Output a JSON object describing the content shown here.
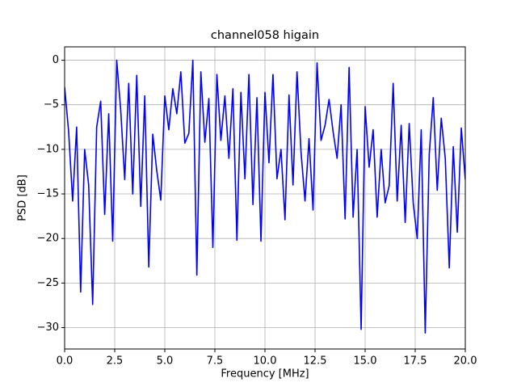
{
  "chart_data": {
    "type": "line",
    "title": "channel058 higain",
    "xlabel": "Frequency [MHz]",
    "ylabel": "PSD [dB]",
    "x": [
      0,
      0.2,
      0.4,
      0.6,
      0.8,
      1,
      1.2,
      1.4,
      1.6,
      1.8,
      2,
      2.2,
      2.4,
      2.6,
      2.8,
      3,
      3.2,
      3.4,
      3.6,
      3.8,
      4,
      4.2,
      4.4,
      4.6,
      4.8,
      5,
      5.2,
      5.4,
      5.6,
      5.8,
      6,
      6.2,
      6.4,
      6.6,
      6.8,
      7,
      7.2,
      7.4,
      7.6,
      7.8,
      8,
      8.2,
      8.4,
      8.6,
      8.8,
      9,
      9.2,
      9.4,
      9.6,
      9.8,
      10,
      10.2,
      10.4,
      10.6,
      10.8,
      11,
      11.2,
      11.4,
      11.6,
      11.8,
      12,
      12.2,
      12.4,
      12.6,
      12.8,
      13,
      13.2,
      13.4,
      13.6,
      13.8,
      14,
      14.2,
      14.4,
      14.6,
      14.8,
      15,
      15.2,
      15.4,
      15.6,
      15.8,
      16,
      16.2,
      16.4,
      16.6,
      16.8,
      17,
      17.2,
      17.4,
      17.6,
      17.8,
      18,
      18.2,
      18.4,
      18.6,
      18.8,
      19,
      19.2,
      19.4,
      19.6,
      19.8,
      20
    ],
    "series": [
      {
        "name": "PSD",
        "color": "#0000ff",
        "values": [
          -3,
          -8,
          -15.8,
          -7.5,
          -26,
          -10,
          -14,
          -27.4,
          -7.5,
          -4.6,
          -17.3,
          -6,
          -20.3,
          0,
          -5.6,
          -13.4,
          -2.6,
          -15,
          -1.7,
          -16.4,
          -4,
          -23.2,
          -8.3,
          -12.4,
          -15.7,
          -4,
          -7.8,
          -3.2,
          -6,
          -1.3,
          -9.3,
          -8.2,
          0,
          -24.1,
          -1.3,
          -9.2,
          -4.3,
          -21,
          -1.6,
          -9,
          -4,
          -11,
          -3.2,
          -20.2,
          -3.6,
          -13.3,
          -1.6,
          -16.2,
          -4.2,
          -20.3,
          -3.6,
          -11.5,
          -1.6,
          -13.3,
          -10,
          -17.9,
          -3.9,
          -14,
          -1.3,
          -10.3,
          -15.8,
          -8.8,
          -16.8,
          -0.3,
          -9,
          -7.3,
          -4.4,
          -8,
          -11,
          -5,
          -17.8,
          -0.8,
          -17.6,
          -10,
          -30.2,
          -5.2,
          -12,
          -7.8,
          -17.6,
          -10,
          -16,
          -14.1,
          -2.6,
          -15.8,
          -7.3,
          -18.2,
          -7.1,
          -16,
          -20,
          -7.8,
          -30.6,
          -10.6,
          -4.2,
          -14.6,
          -6.5,
          -11,
          -23.3,
          -9.7,
          -19.3,
          -7.6,
          -13.4
        ]
      }
    ],
    "xlim": [
      0,
      20
    ],
    "ylim": [
      -32.4,
      1.5
    ],
    "xticks": [
      {
        "value": 0,
        "label": "0.0"
      },
      2.5,
      {
        "value": 5,
        "label": "5.0"
      },
      7.5,
      {
        "value": 10,
        "label": "10.0"
      },
      12.5,
      {
        "value": 15,
        "label": "15.0"
      },
      17.5,
      {
        "value": 20,
        "label": "20.0"
      }
    ],
    "yticks": [
      {
        "value": -30,
        "label": "−30"
      },
      {
        "value": -25,
        "label": "−25"
      },
      {
        "value": -20,
        "label": "−20"
      },
      {
        "value": -15,
        "label": "−15"
      },
      {
        "value": -10,
        "label": "−10"
      },
      {
        "value": -5,
        "label": "−5"
      },
      0
    ],
    "grid": true
  }
}
